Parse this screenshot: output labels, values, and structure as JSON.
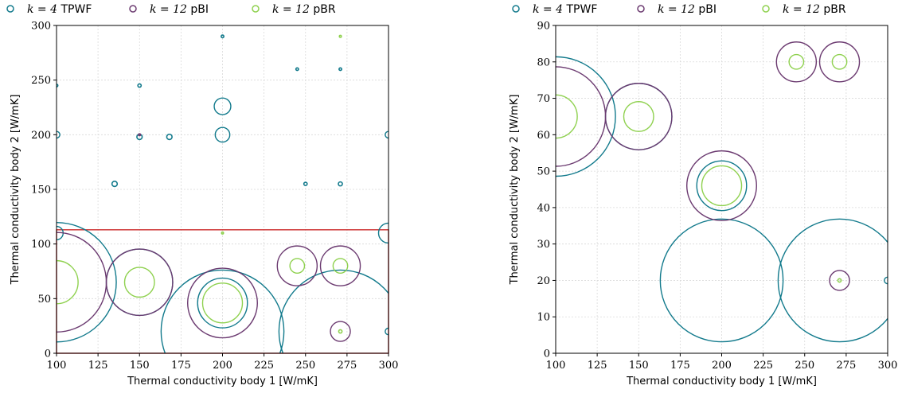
{
  "colors": {
    "TPWF": "#127a8c",
    "pBI": "#6b3a70",
    "pBR": "#8fd14f",
    "inset_box": "#cc2a2a",
    "grid": "#d9d9d9"
  },
  "legend": [
    {
      "key": "TPWF",
      "math": "k = 4",
      "label": "TPWF"
    },
    {
      "key": "pBI",
      "math": "k = 12",
      "label": "pBI"
    },
    {
      "key": "pBR",
      "math": "k = 12",
      "label": "pBR"
    }
  ],
  "chart_data": [
    {
      "type": "scatter",
      "xlabel": "Thermal conductivity body 1 [W/mK]",
      "ylabel": "Thermal conductivity body 2 [W/mK]",
      "xlim": [
        100,
        300
      ],
      "ylim": [
        0,
        300
      ],
      "xticks": [
        100,
        125,
        150,
        175,
        200,
        225,
        250,
        275,
        300
      ],
      "yticks": [
        0,
        50,
        100,
        150,
        200,
        250,
        300
      ],
      "grid": true,
      "legend_position": "top",
      "highlight_box": {
        "x": [
          100,
          300
        ],
        "y": [
          0,
          113
        ]
      },
      "series": [
        {
          "key": "TPWF",
          "name": "TPWF",
          "points": [
            {
              "x": 100,
              "y": 65,
              "r": 0.18
            },
            {
              "x": 150,
              "y": 65,
              "r": 0.1
            },
            {
              "x": 200,
              "y": 46,
              "r": 0.075
            },
            {
              "x": 200,
              "y": 20,
              "r": 0.185
            },
            {
              "x": 271,
              "y": 20,
              "r": 0.185
            },
            {
              "x": 300,
              "y": 20,
              "r": 0.01
            },
            {
              "x": 100,
              "y": 110,
              "r": 0.02
            },
            {
              "x": 300,
              "y": 110,
              "r": 0.03
            },
            {
              "x": 200,
              "y": 226,
              "r": 0.025
            },
            {
              "x": 200,
              "y": 200,
              "r": 0.022
            },
            {
              "x": 100,
              "y": 200,
              "r": 0.01
            },
            {
              "x": 150,
              "y": 198,
              "r": 0.008
            },
            {
              "x": 168,
              "y": 198,
              "r": 0.008
            },
            {
              "x": 300,
              "y": 200,
              "r": 0.01
            },
            {
              "x": 135,
              "y": 155,
              "r": 0.008
            },
            {
              "x": 250,
              "y": 155,
              "r": 0.005
            },
            {
              "x": 271,
              "y": 155,
              "r": 0.006
            },
            {
              "x": 150,
              "y": 245,
              "r": 0.005
            },
            {
              "x": 200,
              "y": 290,
              "r": 0.004
            },
            {
              "x": 245,
              "y": 260,
              "r": 0.004
            },
            {
              "x": 271,
              "y": 260,
              "r": 0.004
            },
            {
              "x": 100,
              "y": 245,
              "r": 0.004
            }
          ]
        },
        {
          "key": "pBI",
          "name": "pBI",
          "points": [
            {
              "x": 100,
              "y": 65,
              "r": 0.15
            },
            {
              "x": 150,
              "y": 65,
              "r": 0.1
            },
            {
              "x": 200,
              "y": 46,
              "r": 0.105
            },
            {
              "x": 245,
              "y": 80,
              "r": 0.06
            },
            {
              "x": 271,
              "y": 80,
              "r": 0.06
            },
            {
              "x": 271,
              "y": 20,
              "r": 0.03
            },
            {
              "x": 150,
              "y": 200,
              "r": 0.002
            }
          ]
        },
        {
          "key": "pBR",
          "name": "pBR",
          "points": [
            {
              "x": 100,
              "y": 65,
              "r": 0.065
            },
            {
              "x": 150,
              "y": 65,
              "r": 0.045
            },
            {
              "x": 200,
              "y": 46,
              "r": 0.06
            },
            {
              "x": 245,
              "y": 80,
              "r": 0.022
            },
            {
              "x": 271,
              "y": 80,
              "r": 0.022
            },
            {
              "x": 271,
              "y": 20,
              "r": 0.005
            },
            {
              "x": 200,
              "y": 110,
              "r": 0.002
            },
            {
              "x": 271,
              "y": 290,
              "r": 0.003
            }
          ]
        }
      ]
    },
    {
      "type": "scatter",
      "xlabel": "Thermal conductivity body 1 [W/mK]",
      "ylabel": "Thermal conductivity body 2 [W/mK]",
      "xlim": [
        100,
        300
      ],
      "ylim": [
        0,
        90
      ],
      "xticks": [
        100,
        125,
        150,
        175,
        200,
        225,
        250,
        275,
        300
      ],
      "yticks": [
        0,
        10,
        20,
        30,
        40,
        50,
        60,
        70,
        80,
        90
      ],
      "grid": true,
      "legend_position": "top",
      "series": [
        {
          "key": "TPWF",
          "name": "TPWF",
          "points": [
            {
              "x": 100,
              "y": 65,
              "r": 0.18
            },
            {
              "x": 150,
              "y": 65,
              "r": 0.1
            },
            {
              "x": 200,
              "y": 46,
              "r": 0.075
            },
            {
              "x": 200,
              "y": 20,
              "r": 0.185
            },
            {
              "x": 271,
              "y": 20,
              "r": 0.185
            },
            {
              "x": 300,
              "y": 20,
              "r": 0.01
            }
          ]
        },
        {
          "key": "pBI",
          "name": "pBI",
          "points": [
            {
              "x": 100,
              "y": 65,
              "r": 0.15
            },
            {
              "x": 150,
              "y": 65,
              "r": 0.1
            },
            {
              "x": 200,
              "y": 46,
              "r": 0.105
            },
            {
              "x": 245,
              "y": 80,
              "r": 0.06
            },
            {
              "x": 271,
              "y": 80,
              "r": 0.06
            },
            {
              "x": 271,
              "y": 20,
              "r": 0.03
            }
          ]
        },
        {
          "key": "pBR",
          "name": "pBR",
          "points": [
            {
              "x": 100,
              "y": 65,
              "r": 0.065
            },
            {
              "x": 150,
              "y": 65,
              "r": 0.045
            },
            {
              "x": 200,
              "y": 46,
              "r": 0.06
            },
            {
              "x": 245,
              "y": 80,
              "r": 0.022
            },
            {
              "x": 271,
              "y": 80,
              "r": 0.022
            },
            {
              "x": 271,
              "y": 20,
              "r": 0.005
            }
          ]
        }
      ]
    }
  ]
}
